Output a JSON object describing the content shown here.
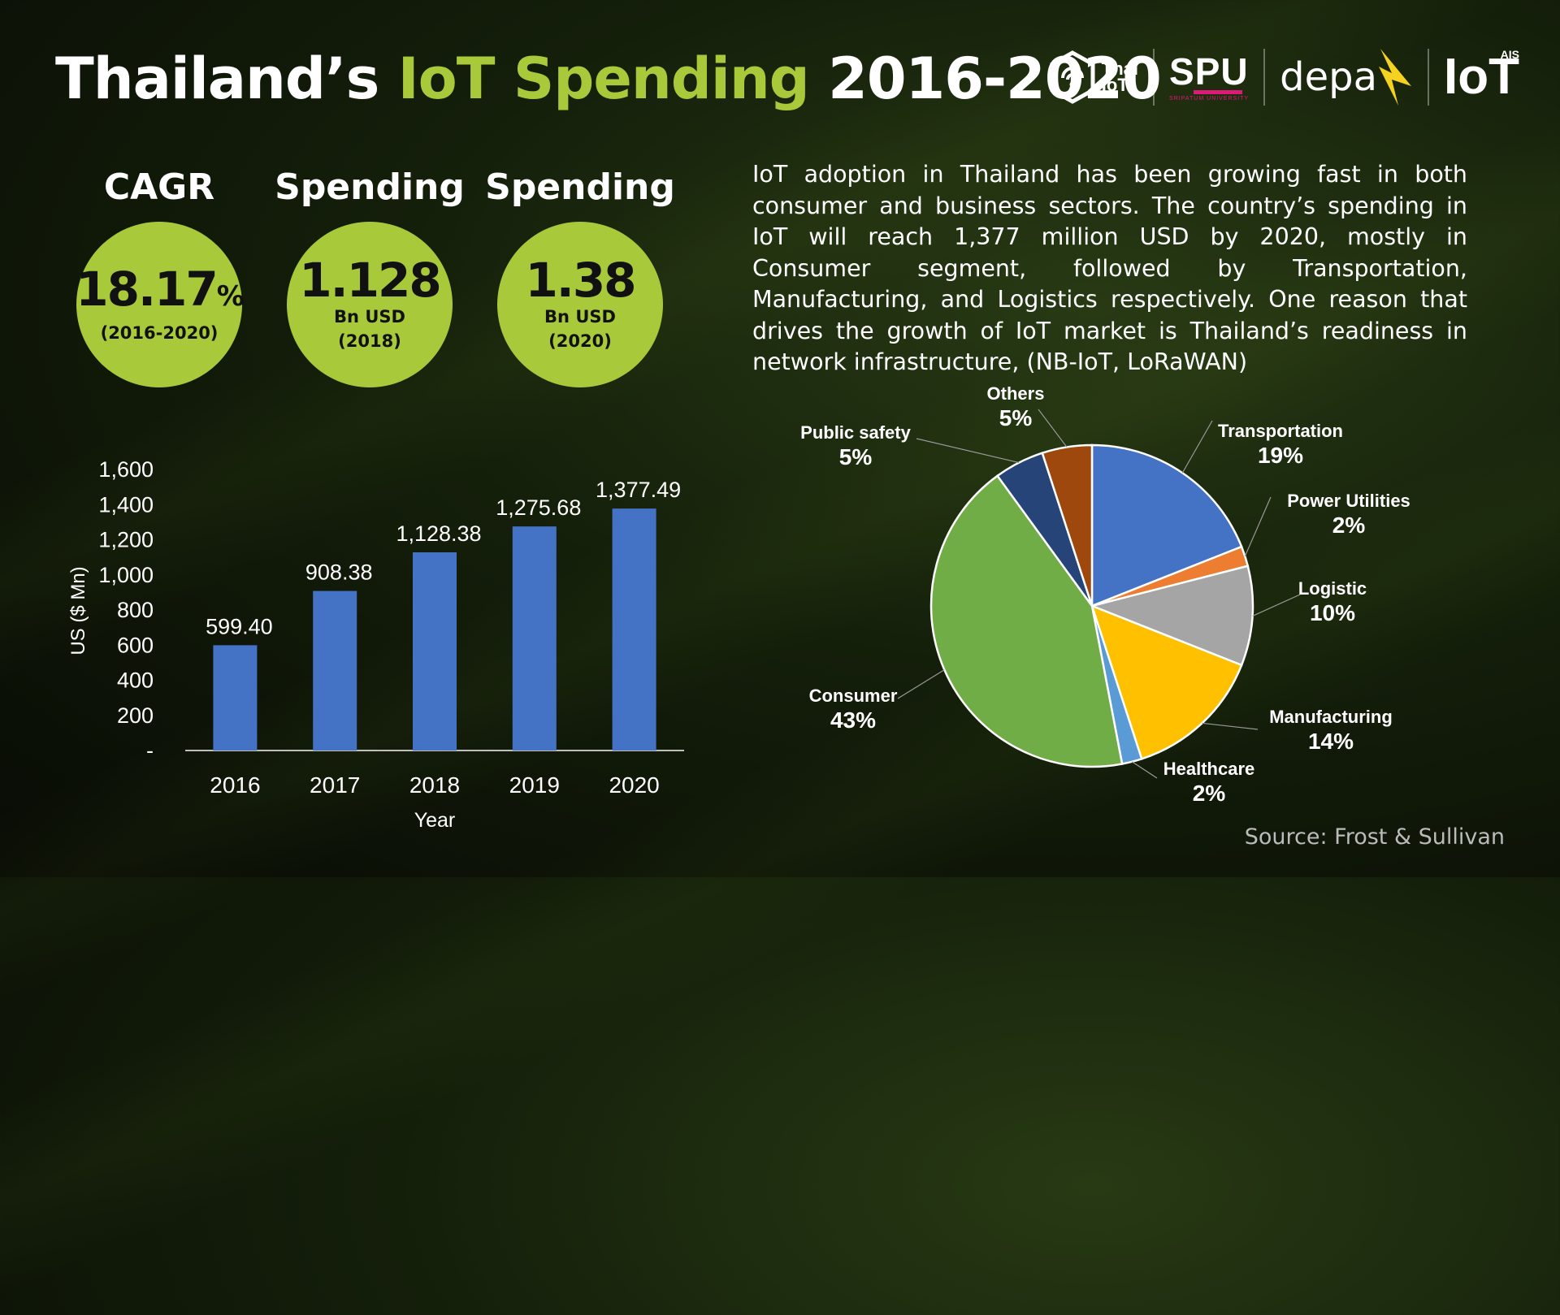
{
  "title": {
    "part1": "Thailand’s ",
    "part2": "IoT Spending",
    "part3": " 2016-2020"
  },
  "logos": {
    "thaiiot_line1": "Thai",
    "thaiiot_line2": "IoT",
    "spu": "SPU",
    "spu_sub": "SRIPATUM UNIVERSITY",
    "depa": "depa",
    "ais_small": "AIS",
    "ais_iot": "IoT"
  },
  "stats": [
    {
      "label": "CAGR",
      "value": "18.17",
      "suffix": "%",
      "line1": "(2016-2020)",
      "line2": ""
    },
    {
      "label": "Spending",
      "value": "1.128",
      "suffix": "",
      "line1": "Bn USD",
      "line2": "(2018)"
    },
    {
      "label": "Spending",
      "value": "1.38",
      "suffix": "",
      "line1": "Bn USD",
      "line2": "(2020)"
    }
  ],
  "description": "IoT adoption in Thailand has been growing fast in both consumer and business sectors. The country’s spending in IoT will reach 1,377 million USD by 2020, mostly in Consumer segment, followed by Transportation, Manufacturing, and Logistics respectively. One reason that drives the growth of IoT market is Thailand’s readiness in network infrastructure, (NB-IoT,  LoRaWAN)",
  "source": "Source: Frost & Sullivan",
  "chart_data": [
    {
      "type": "bar",
      "categories": [
        "2016",
        "2017",
        "2018",
        "2019",
        "2020"
      ],
      "values": [
        599.4,
        908.38,
        1128.38,
        1275.68,
        1377.49
      ],
      "value_labels": [
        "599.40",
        "908.38",
        "1,128.38",
        "1,275.68",
        "1,377.49"
      ],
      "xlabel": "Year",
      "ylabel": "US ($ Mn)",
      "ylim": [
        0,
        1600
      ],
      "yticks": [
        0,
        200,
        400,
        600,
        800,
        1000,
        1200,
        1400,
        1600
      ],
      "ytick_labels": [
        "-",
        "200",
        "400",
        "600",
        "800",
        "1,000",
        "1,200",
        "1,400",
        "1,600"
      ],
      "bar_color": "#4472c4",
      "grid": false
    },
    {
      "type": "pie",
      "start_angle_deg": 0,
      "direction": "clockwise",
      "slices": [
        {
          "label": "Transportation",
          "pct_label": "19%",
          "value": 19,
          "color": "#4472c4"
        },
        {
          "label": "Power Utilities",
          "pct_label": "2%",
          "value": 2,
          "color": "#ed7d31"
        },
        {
          "label": "Logistic",
          "pct_label": "10%",
          "value": 10,
          "color": "#a5a5a5"
        },
        {
          "label": "Manufacturing",
          "pct_label": "14%",
          "value": 14,
          "color": "#ffc000"
        },
        {
          "label": "Healthcare",
          "pct_label": "2%",
          "value": 2,
          "color": "#5b9bd5"
        },
        {
          "label": "Consumer",
          "pct_label": "43%",
          "value": 43,
          "color": "#70ad47"
        },
        {
          "label": "Public safety",
          "pct_label": "5%",
          "value": 5,
          "color": "#264478"
        },
        {
          "label": "Others",
          "pct_label": "5%",
          "value": 5,
          "color": "#9e480e"
        }
      ]
    }
  ]
}
